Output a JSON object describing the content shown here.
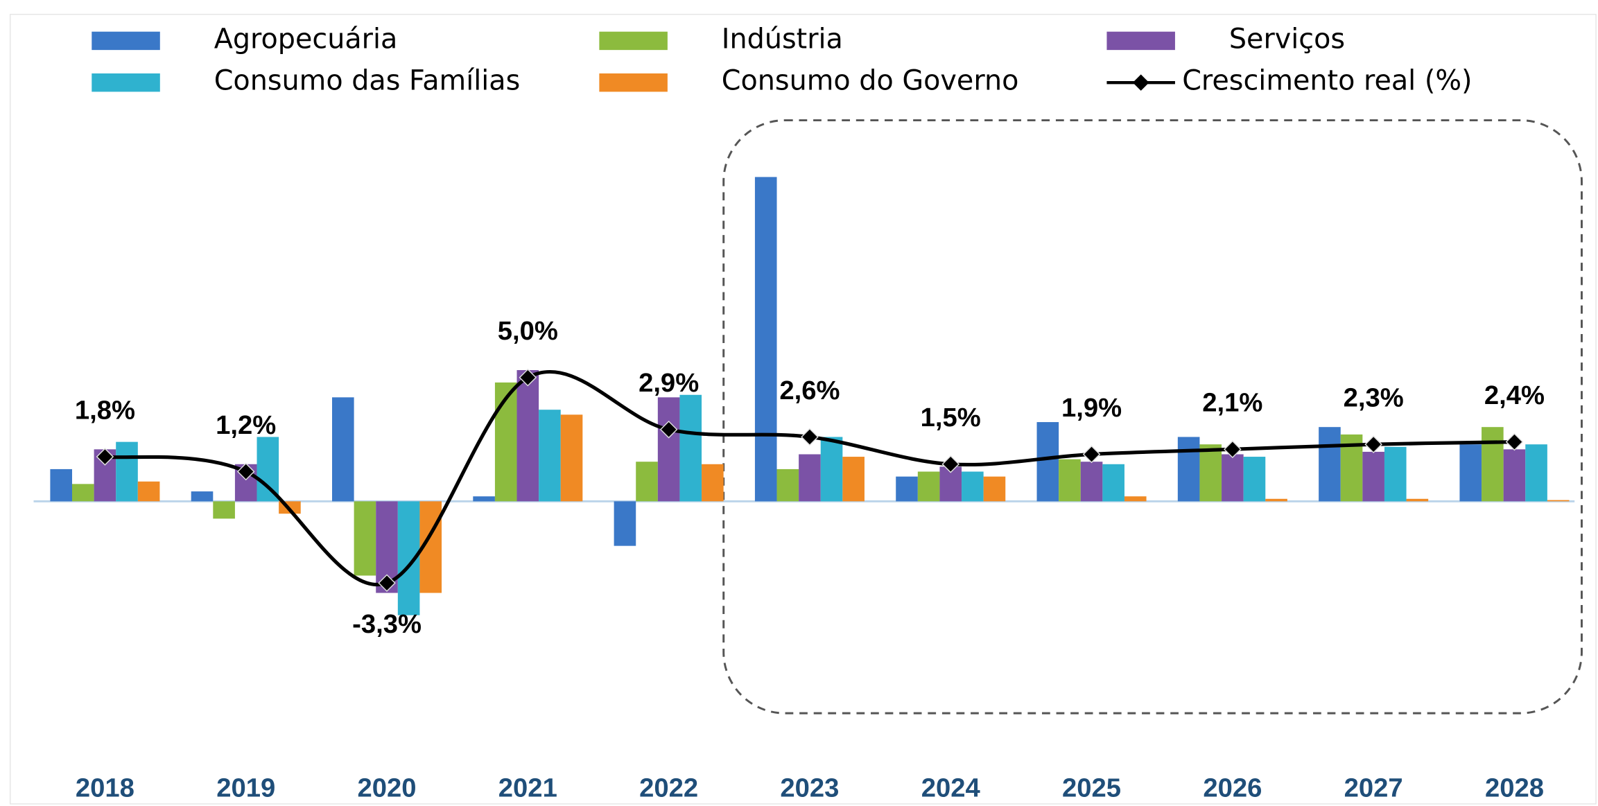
{
  "chart_data": {
    "type": "bar",
    "categories": [
      "2018",
      "2019",
      "2020",
      "2021",
      "2022",
      "2023",
      "2024",
      "2025",
      "2026",
      "2027",
      "2028"
    ],
    "series": [
      {
        "name": "Agropecuária",
        "color": "#3a78c8",
        "values": [
          1.3,
          0.4,
          4.2,
          0.2,
          -1.8,
          13.1,
          1.0,
          3.2,
          2.6,
          3.0,
          2.3
        ]
      },
      {
        "name": "Indústria",
        "color": "#8cbb3e",
        "values": [
          0.7,
          -0.7,
          -3.0,
          4.8,
          1.6,
          1.3,
          1.2,
          1.7,
          2.3,
          2.7,
          3.0
        ]
      },
      {
        "name": "Serviços",
        "color": "#7b52a6",
        "values": [
          2.1,
          1.5,
          -3.7,
          5.3,
          4.2,
          1.9,
          1.4,
          1.6,
          1.9,
          2.0,
          2.1
        ]
      },
      {
        "name": "Consumo das Famílias",
        "color": "#2fb2cf",
        "values": [
          2.4,
          2.6,
          -4.6,
          3.7,
          4.3,
          2.6,
          1.2,
          1.5,
          1.8,
          2.2,
          2.3
        ]
      },
      {
        "name": "Consumo do Governo",
        "color": "#f08a24",
        "values": [
          0.8,
          -0.5,
          -3.7,
          3.5,
          1.5,
          1.8,
          1.0,
          0.2,
          0.1,
          0.1,
          0.05
        ]
      }
    ],
    "line_series": {
      "name": "Crescimento real (%)",
      "color": "#000000",
      "values": [
        1.8,
        1.2,
        -3.3,
        5.0,
        2.9,
        2.6,
        1.5,
        1.9,
        2.1,
        2.3,
        2.4
      ],
      "value_labels": [
        "1,8%",
        "1,2%",
        "-3,3%",
        "5,0%",
        "2,9%",
        "2,6%",
        "1,5%",
        "1,9%",
        "2,1%",
        "2,3%",
        "2,4%"
      ]
    },
    "ylim": [
      -10,
      15
    ]
  }
}
